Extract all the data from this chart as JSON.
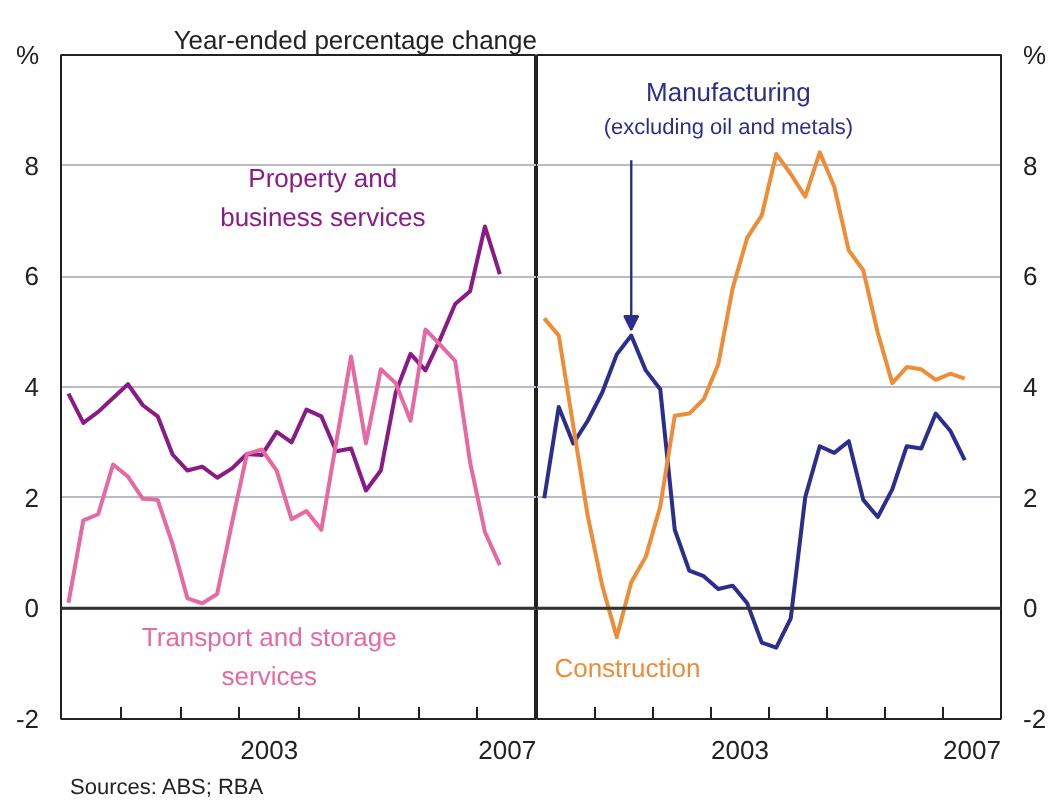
{
  "chart_data": [
    {
      "type": "line",
      "title": "Year-ended percentage change",
      "annotations": [
        "Sources: ABS; RBA"
      ],
      "x": [
        2000.125,
        2000.375,
        2000.625,
        2000.875,
        2001.125,
        2001.375,
        2001.625,
        2001.875,
        2002.125,
        2002.375,
        2002.625,
        2002.875,
        2003.125,
        2003.375,
        2003.625,
        2003.875,
        2004.125,
        2004.375,
        2004.625,
        2004.875,
        2005.125,
        2005.375,
        2005.625,
        2005.875,
        2006.125,
        2006.375,
        2006.625,
        2006.875,
        2007.125,
        2007.375
      ],
      "series": [
        {
          "name": "Property and\nbusiness services",
          "color": "#8b1a89",
          "values": [
            3.88,
            3.35,
            3.55,
            3.8,
            4.05,
            3.67,
            3.47,
            2.78,
            2.49,
            2.56,
            2.36,
            2.53,
            2.79,
            2.77,
            3.19,
            3.0,
            3.59,
            3.47,
            2.84,
            2.89,
            2.13,
            2.49,
            3.9,
            4.6,
            4.3,
            4.87,
            5.5,
            5.73,
            6.9,
            6.04
          ]
        },
        {
          "name": "Transport and storage\nservices",
          "color": "#e868a2",
          "values": [
            0.1,
            1.59,
            1.7,
            2.6,
            2.38,
            1.98,
            1.96,
            1.16,
            0.18,
            0.09,
            0.26,
            1.55,
            2.79,
            2.87,
            2.49,
            1.61,
            1.76,
            1.42,
            3.0,
            4.55,
            2.98,
            4.32,
            4.07,
            3.39,
            5.04,
            4.76,
            4.47,
            2.64,
            1.38,
            0.78
          ]
        }
      ],
      "xlim": [
        2000,
        2008
      ],
      "xticks": [
        {
          "value": 2000,
          "label": null
        },
        {
          "value": 2001,
          "label": null
        },
        {
          "value": 2002,
          "label": null
        },
        {
          "value": 2003,
          "label": null
        },
        {
          "value": 2004,
          "label": null
        },
        {
          "value": 2005,
          "label": null
        },
        {
          "value": 2006,
          "label": null
        },
        {
          "value": 2007,
          "label": null
        },
        {
          "value": 2008,
          "label": null
        },
        {
          "value": 2003.5,
          "label": "2003"
        },
        {
          "value": 2007.5,
          "label": "2007"
        }
      ],
      "ylim": [
        -2,
        10
      ],
      "yticks": [
        -2,
        0,
        2,
        4,
        6,
        8,
        {
          "value": 10,
          "label": "%"
        }
      ],
      "ref_lines": [
        {
          "axis": "y",
          "value": 0,
          "color": "#333333"
        }
      ],
      "grid": "y",
      "legend": false,
      "marker": "none",
      "line_style": "solid"
    },
    {
      "type": "line",
      "x": [
        2000.125,
        2000.375,
        2000.625,
        2000.875,
        2001.125,
        2001.375,
        2001.625,
        2001.875,
        2002.125,
        2002.375,
        2002.625,
        2002.875,
        2003.125,
        2003.375,
        2003.625,
        2003.875,
        2004.125,
        2004.375,
        2004.625,
        2004.875,
        2005.125,
        2005.375,
        2005.625,
        2005.875,
        2006.125,
        2006.375,
        2006.625,
        2006.875,
        2007.125,
        2007.375
      ],
      "series": [
        {
          "name": "Manufacturing\n(excluding oil and metals)",
          "color": "#2b2e8e",
          "values": [
            1.99,
            3.64,
            2.98,
            3.39,
            3.9,
            4.59,
            4.93,
            4.3,
            3.96,
            1.42,
            0.68,
            0.58,
            0.35,
            0.41,
            0.09,
            -0.62,
            -0.71,
            -0.18,
            2.01,
            2.93,
            2.81,
            3.02,
            1.96,
            1.65,
            2.15,
            2.93,
            2.89,
            3.52,
            3.21,
            2.68
          ]
        },
        {
          "name": "Construction",
          "color": "#f08b36",
          "values": [
            5.24,
            4.93,
            3.3,
            1.67,
            0.41,
            -0.52,
            0.47,
            0.93,
            1.84,
            3.48,
            3.52,
            3.78,
            4.41,
            5.79,
            6.7,
            7.1,
            8.21,
            7.85,
            7.44,
            8.24,
            7.62,
            6.47,
            6.11,
            4.98,
            4.07,
            4.36,
            4.32,
            4.13,
            4.24,
            4.15
          ]
        }
      ],
      "xlim": [
        2000,
        2008
      ],
      "xticks": [
        {
          "value": 2000,
          "label": null
        },
        {
          "value": 2001,
          "label": null
        },
        {
          "value": 2002,
          "label": null
        },
        {
          "value": 2003,
          "label": null
        },
        {
          "value": 2004,
          "label": null
        },
        {
          "value": 2005,
          "label": null
        },
        {
          "value": 2006,
          "label": null
        },
        {
          "value": 2007,
          "label": null
        },
        {
          "value": 2008,
          "label": null
        },
        {
          "value": 2003.5,
          "label": "2003"
        },
        {
          "value": 2007.5,
          "label": "2007"
        }
      ],
      "ylim": [
        -2,
        10
      ],
      "yticks": [
        -2,
        0,
        2,
        4,
        6,
        8,
        {
          "value": 10,
          "label": "%"
        }
      ],
      "ref_lines": [
        {
          "axis": "y",
          "value": 0,
          "color": "#333333"
        }
      ],
      "grid": "y",
      "legend": false,
      "marker": "none",
      "line_style": "solid"
    }
  ]
}
